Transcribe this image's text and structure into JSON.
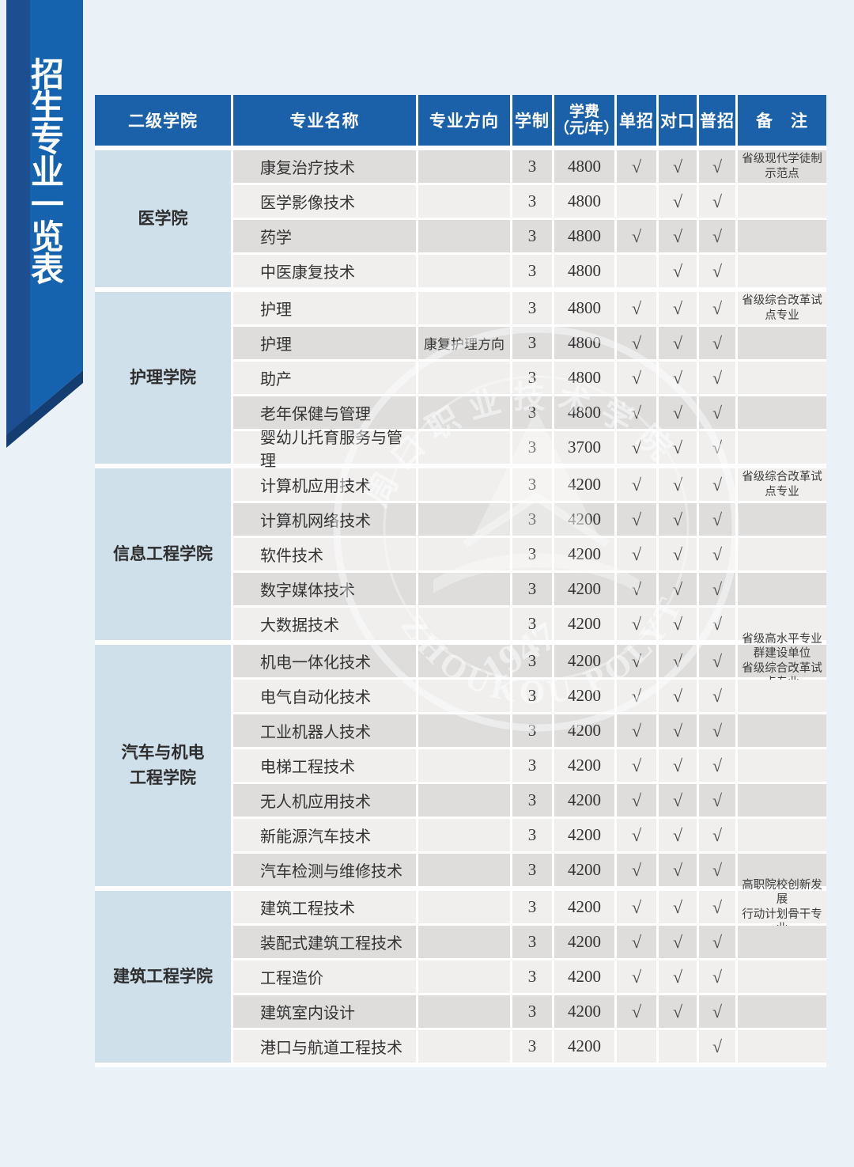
{
  "page": {
    "vertical_title": "招生专业一览表"
  },
  "colors": {
    "page_bg": "#eaf2f8",
    "header_bg": "#1b61aa",
    "ribbon_main": "#1563ae",
    "ribbon_dark": "#1d4e8f",
    "ribbon_fold": "#143e72",
    "college_bg": "#cfe0ea",
    "row_light": "#f0efee",
    "row_dark": "#dedddc"
  },
  "table": {
    "check_mark": "√",
    "headers": {
      "college": "二级学院",
      "major": "专业名称",
      "direction": "专业方向",
      "years": "学制",
      "fee_line1": "学费",
      "fee_line2": "（元/年）",
      "single": "单招",
      "counterpart": "对口",
      "general": "普招",
      "remark": "备　注"
    },
    "sections": [
      {
        "college": "医学院",
        "rows": [
          {
            "major": "康复治疗技术",
            "direction": "",
            "years": "3",
            "fee": "4800",
            "single": true,
            "counterpart": true,
            "general": true,
            "remark": "省级现代学徒制示范点"
          },
          {
            "major": "医学影像技术",
            "direction": "",
            "years": "3",
            "fee": "4800",
            "single": false,
            "counterpart": true,
            "general": true,
            "remark": ""
          },
          {
            "major": "药学",
            "direction": "",
            "years": "3",
            "fee": "4800",
            "single": true,
            "counterpart": true,
            "general": true,
            "remark": ""
          },
          {
            "major": "中医康复技术",
            "direction": "",
            "years": "3",
            "fee": "4800",
            "single": false,
            "counterpart": true,
            "general": true,
            "remark": ""
          }
        ]
      },
      {
        "college": "护理学院",
        "rows": [
          {
            "major": "护理",
            "direction": "",
            "years": "3",
            "fee": "4800",
            "single": true,
            "counterpart": true,
            "general": true,
            "remark": "省级综合改革试点专业"
          },
          {
            "major": "护理",
            "direction": "康复护理方向",
            "years": "3",
            "fee": "4800",
            "single": true,
            "counterpart": true,
            "general": true,
            "remark": ""
          },
          {
            "major": "助产",
            "direction": "",
            "years": "3",
            "fee": "4800",
            "single": true,
            "counterpart": true,
            "general": true,
            "remark": ""
          },
          {
            "major": "老年保健与管理",
            "direction": "",
            "years": "3",
            "fee": "4800",
            "single": true,
            "counterpart": true,
            "general": true,
            "remark": ""
          },
          {
            "major": "婴幼儿托育服务与管理",
            "direction": "",
            "years": "3",
            "fee": "3700",
            "single": true,
            "counterpart": true,
            "general": true,
            "remark": ""
          }
        ]
      },
      {
        "college": "信息工程学院",
        "rows": [
          {
            "major": "计算机应用技术",
            "direction": "",
            "years": "3",
            "fee": "4200",
            "single": true,
            "counterpart": true,
            "general": true,
            "remark": "省级综合改革试点专业"
          },
          {
            "major": "计算机网络技术",
            "direction": "",
            "years": "3",
            "fee": "4200",
            "single": true,
            "counterpart": true,
            "general": true,
            "remark": ""
          },
          {
            "major": "软件技术",
            "direction": "",
            "years": "3",
            "fee": "4200",
            "single": true,
            "counterpart": true,
            "general": true,
            "remark": ""
          },
          {
            "major": "数字媒体技术",
            "direction": "",
            "years": "3",
            "fee": "4200",
            "single": true,
            "counterpart": true,
            "general": true,
            "remark": ""
          },
          {
            "major": "大数据技术",
            "direction": "",
            "years": "3",
            "fee": "4200",
            "single": true,
            "counterpart": true,
            "general": true,
            "remark": ""
          }
        ]
      },
      {
        "college": "汽车与机电\n工程学院",
        "rows": [
          {
            "major": "机电一体化技术",
            "direction": "",
            "years": "3",
            "fee": "4200",
            "single": true,
            "counterpart": true,
            "general": true,
            "remark": "省级高水平专业群建设单位\n省级综合改革试点专业"
          },
          {
            "major": "电气自动化技术",
            "direction": "",
            "years": "3",
            "fee": "4200",
            "single": true,
            "counterpart": true,
            "general": true,
            "remark": ""
          },
          {
            "major": "工业机器人技术",
            "direction": "",
            "years": "3",
            "fee": "4200",
            "single": true,
            "counterpart": true,
            "general": true,
            "remark": ""
          },
          {
            "major": "电梯工程技术",
            "direction": "",
            "years": "3",
            "fee": "4200",
            "single": true,
            "counterpart": true,
            "general": true,
            "remark": ""
          },
          {
            "major": "无人机应用技术",
            "direction": "",
            "years": "3",
            "fee": "4200",
            "single": true,
            "counterpart": true,
            "general": true,
            "remark": ""
          },
          {
            "major": "新能源汽车技术",
            "direction": "",
            "years": "3",
            "fee": "4200",
            "single": true,
            "counterpart": true,
            "general": true,
            "remark": ""
          },
          {
            "major": "汽车检测与维修技术",
            "direction": "",
            "years": "3",
            "fee": "4200",
            "single": true,
            "counterpart": true,
            "general": true,
            "remark": ""
          }
        ]
      },
      {
        "college": "建筑工程学院",
        "rows": [
          {
            "major": "建筑工程技术",
            "direction": "",
            "years": "3",
            "fee": "4200",
            "single": true,
            "counterpart": true,
            "general": true,
            "remark": "高职院校创新发展\n行动计划骨干专业"
          },
          {
            "major": "装配式建筑工程技术",
            "direction": "",
            "years": "3",
            "fee": "4200",
            "single": true,
            "counterpart": true,
            "general": true,
            "remark": ""
          },
          {
            "major": "工程造价",
            "direction": "",
            "years": "3",
            "fee": "4200",
            "single": true,
            "counterpart": true,
            "general": true,
            "remark": ""
          },
          {
            "major": "建筑室内设计",
            "direction": "",
            "years": "3",
            "fee": "4200",
            "single": true,
            "counterpart": true,
            "general": true,
            "remark": ""
          },
          {
            "major": "港口与航道工程技术",
            "direction": "",
            "years": "3",
            "fee": "4200",
            "single": false,
            "counterpart": false,
            "general": true,
            "remark": ""
          }
        ]
      }
    ]
  },
  "watermark": {
    "top_arc_text": "周口职业技术学院",
    "bottom_arc_text": "ZHOUKOU POLYTECHNIC",
    "year": "1947"
  }
}
